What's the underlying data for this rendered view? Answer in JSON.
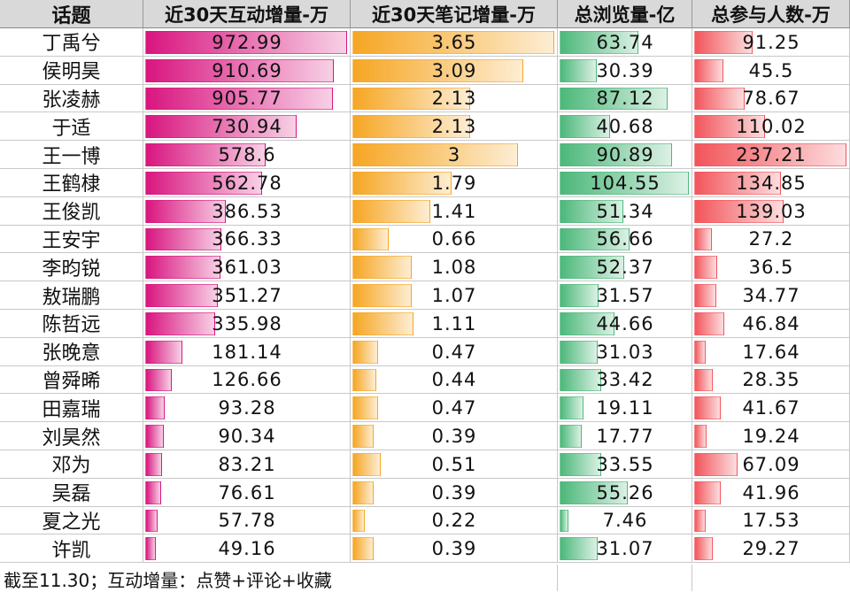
{
  "columns": [
    {
      "key": "topic",
      "label": "话题"
    },
    {
      "key": "interactions",
      "label": "近30天互动增量-万",
      "color": "#d9157f"
    },
    {
      "key": "notes",
      "label": "近30天笔记增量-万",
      "color": "#f6a623"
    },
    {
      "key": "views",
      "label": "总浏览量-亿",
      "color": "#4cb87a"
    },
    {
      "key": "participants",
      "label": "总参与人数-万",
      "color": "#f2555b"
    }
  ],
  "rows": [
    {
      "topic": "丁禹兮",
      "interactions": "972.99",
      "notes": "3.65",
      "views": "63.74",
      "participants": "91.25"
    },
    {
      "topic": "侯明昊",
      "interactions": "910.69",
      "notes": "3.09",
      "views": "30.39",
      "participants": "45.5"
    },
    {
      "topic": "张凌赫",
      "interactions": "905.77",
      "notes": "2.13",
      "views": "87.12",
      "participants": "78.67"
    },
    {
      "topic": "于适",
      "interactions": "730.94",
      "notes": "2.13",
      "views": "40.68",
      "participants": "110.02"
    },
    {
      "topic": "王一博",
      "interactions": "578.6",
      "notes": "3",
      "views": "90.89",
      "participants": "237.21"
    },
    {
      "topic": "王鹤棣",
      "interactions": "562.78",
      "notes": "1.79",
      "views": "104.55",
      "participants": "134.85"
    },
    {
      "topic": "王俊凯",
      "interactions": "386.53",
      "notes": "1.41",
      "views": "51.34",
      "participants": "139.03"
    },
    {
      "topic": "王安宇",
      "interactions": "366.33",
      "notes": "0.66",
      "views": "56.66",
      "participants": "27.2"
    },
    {
      "topic": "李昀锐",
      "interactions": "361.03",
      "notes": "1.08",
      "views": "52.37",
      "participants": "36.5"
    },
    {
      "topic": "敖瑞鹏",
      "interactions": "351.27",
      "notes": "1.07",
      "views": "31.57",
      "participants": "34.77"
    },
    {
      "topic": "陈哲远",
      "interactions": "335.98",
      "notes": "1.11",
      "views": "44.66",
      "participants": "46.84"
    },
    {
      "topic": "张晚意",
      "interactions": "181.14",
      "notes": "0.47",
      "views": "31.03",
      "participants": "17.64"
    },
    {
      "topic": "曾舜晞",
      "interactions": "126.66",
      "notes": "0.44",
      "views": "33.42",
      "participants": "28.35"
    },
    {
      "topic": "田嘉瑞",
      "interactions": "93.28",
      "notes": "0.47",
      "views": "19.11",
      "participants": "41.67"
    },
    {
      "topic": "刘昊然",
      "interactions": "90.34",
      "notes": "0.39",
      "views": "17.77",
      "participants": "19.24"
    },
    {
      "topic": "邓为",
      "interactions": "83.21",
      "notes": "0.51",
      "views": "33.55",
      "participants": "67.09"
    },
    {
      "topic": "吴磊",
      "interactions": "76.61",
      "notes": "0.39",
      "views": "55.26",
      "participants": "41.96"
    },
    {
      "topic": "夏之光",
      "interactions": "57.78",
      "notes": "0.22",
      "views": "7.46",
      "participants": "17.53"
    },
    {
      "topic": "许凯",
      "interactions": "49.16",
      "notes": "0.39",
      "views": "31.07",
      "participants": "29.27"
    }
  ],
  "footnote": "截至11.30；互动增量：点赞+评论+收藏",
  "chart_data": {
    "type": "table",
    "title": "",
    "columns": [
      "话题",
      "近30天互动增量-万",
      "近30天笔记增量-万",
      "总浏览量-亿",
      "总参与人数-万"
    ],
    "categories": [
      "丁禹兮",
      "侯明昊",
      "张凌赫",
      "于适",
      "王一博",
      "王鹤棣",
      "王俊凯",
      "王安宇",
      "李昀锐",
      "敖瑞鹏",
      "陈哲远",
      "张晚意",
      "曾舜晞",
      "田嘉瑞",
      "刘昊然",
      "邓为",
      "吴磊",
      "夏之光",
      "许凯"
    ],
    "series": [
      {
        "name": "近30天互动增量-万",
        "values": [
          972.99,
          910.69,
          905.77,
          730.94,
          578.6,
          562.78,
          386.53,
          366.33,
          361.03,
          351.27,
          335.98,
          181.14,
          126.66,
          93.28,
          90.34,
          83.21,
          76.61,
          57.78,
          49.16
        ]
      },
      {
        "name": "近30天笔记增量-万",
        "values": [
          3.65,
          3.09,
          2.13,
          2.13,
          3,
          1.79,
          1.41,
          0.66,
          1.08,
          1.07,
          1.11,
          0.47,
          0.44,
          0.47,
          0.39,
          0.51,
          0.39,
          0.22,
          0.39
        ]
      },
      {
        "name": "总浏览量-亿",
        "values": [
          63.74,
          30.39,
          87.12,
          40.68,
          90.89,
          104.55,
          51.34,
          56.66,
          52.37,
          31.57,
          44.66,
          31.03,
          33.42,
          19.11,
          17.77,
          33.55,
          55.26,
          7.46,
          31.07
        ]
      },
      {
        "name": "总参与人数-万",
        "values": [
          91.25,
          45.5,
          78.67,
          110.02,
          237.21,
          134.85,
          139.03,
          27.2,
          36.5,
          34.77,
          46.84,
          17.64,
          28.35,
          41.67,
          19.24,
          67.09,
          41.96,
          17.53,
          29.27
        ]
      }
    ]
  }
}
